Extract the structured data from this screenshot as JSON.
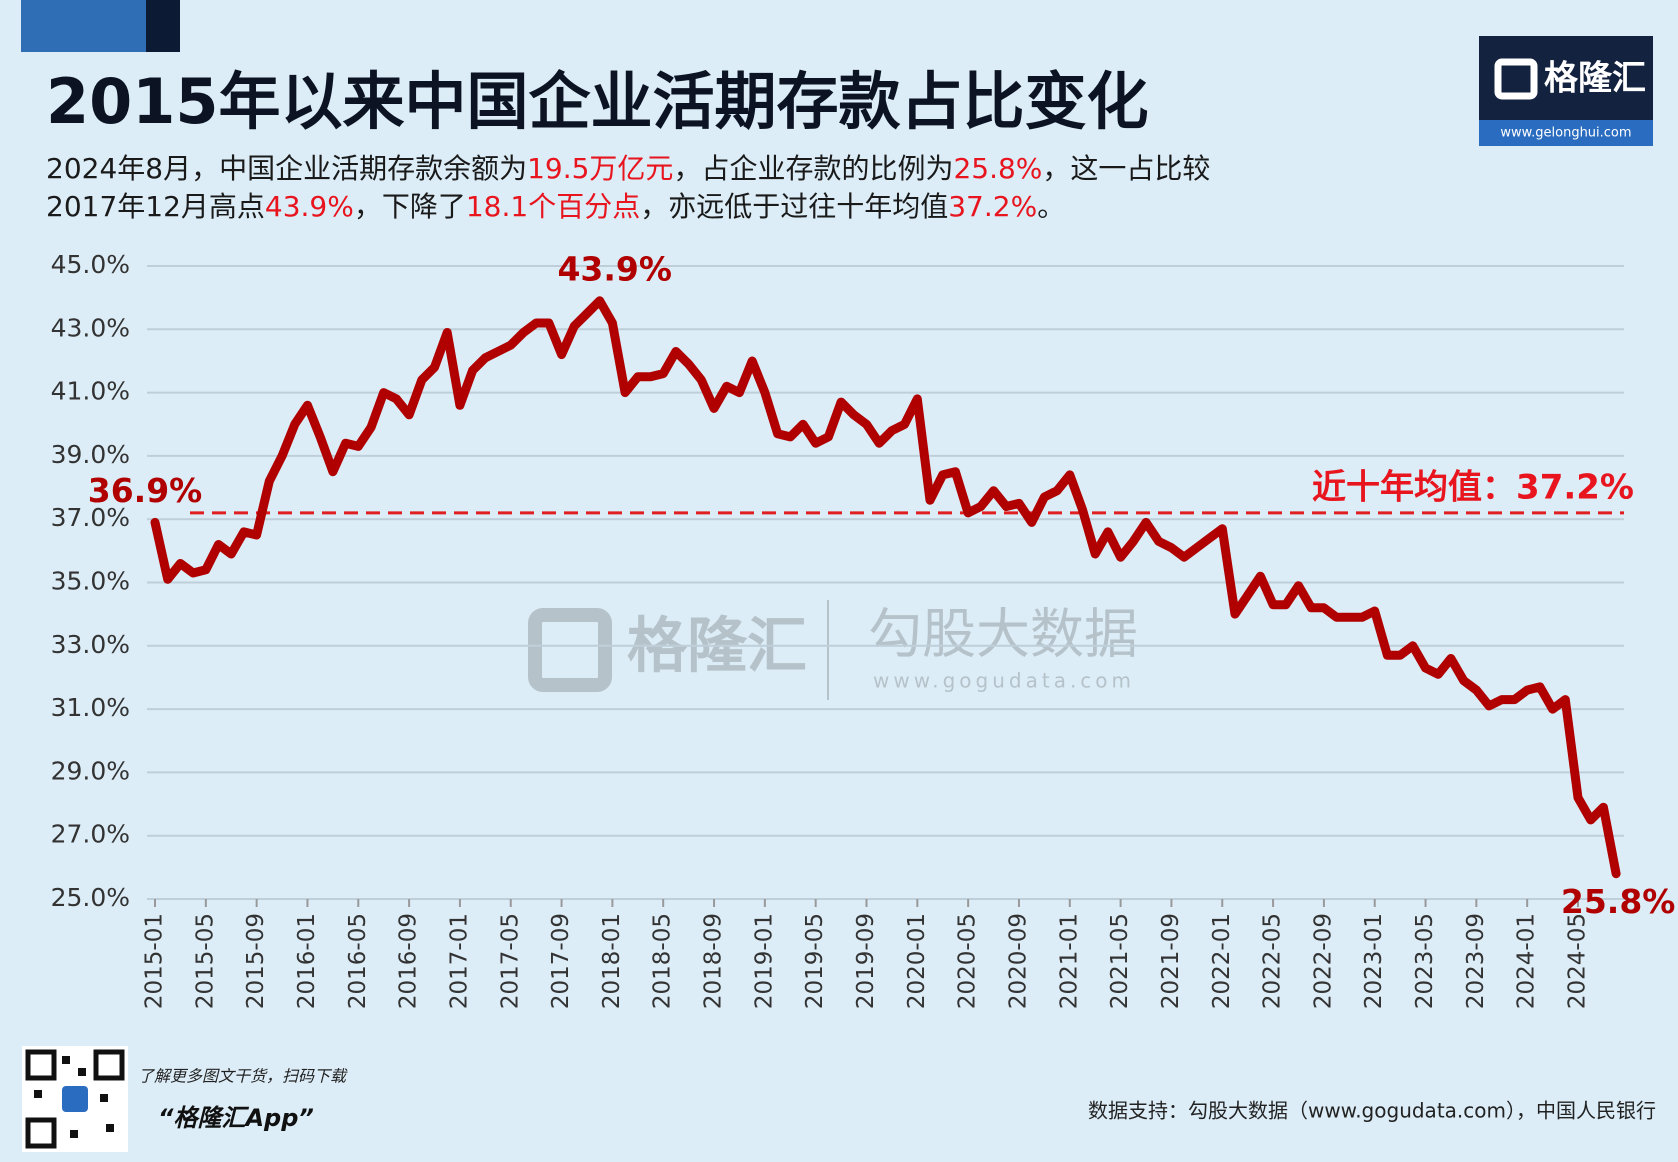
{
  "chart_data": {
    "type": "line",
    "title": "2015年以来中国企业活期存款占比变化",
    "subtitle_lines": [
      [
        {
          "text": "2024年8月，中国企业活期存款余额为"
        },
        {
          "text": "19.5万亿元",
          "highlight": true
        },
        {
          "text": "，占企业存款的比例为"
        },
        {
          "text": "25.8%",
          "highlight": true
        },
        {
          "text": "，这一占比较"
        }
      ],
      [
        {
          "text": "2017年12月高点"
        },
        {
          "text": "43.9%",
          "highlight": true
        },
        {
          "text": "，下降了"
        },
        {
          "text": "18.1个百分点",
          "highlight": true
        },
        {
          "text": "，亦远低于过往十年均值"
        },
        {
          "text": "37.2%",
          "highlight": true
        },
        {
          "text": "。"
        }
      ]
    ],
    "highlight_color": "#e8141e",
    "categories": [
      "2015-01",
      null,
      null,
      null,
      "2015-05",
      null,
      null,
      null,
      "2015-09",
      null,
      null,
      null,
      "2016-01",
      null,
      null,
      null,
      "2016-05",
      null,
      null,
      null,
      "2016-09",
      null,
      null,
      null,
      "2017-01",
      null,
      null,
      null,
      "2017-05",
      null,
      null,
      null,
      "2017-09",
      null,
      null,
      null,
      "2018-01",
      null,
      null,
      null,
      "2018-05",
      null,
      null,
      null,
      "2018-09",
      null,
      null,
      null,
      "2019-01",
      null,
      null,
      null,
      "2019-05",
      null,
      null,
      null,
      "2019-09",
      null,
      null,
      null,
      "2020-01",
      null,
      null,
      null,
      "2020-05",
      null,
      null,
      null,
      "2020-09",
      null,
      null,
      null,
      "2021-01",
      null,
      null,
      null,
      "2021-05",
      null,
      null,
      null,
      "2021-09",
      null,
      null,
      null,
      "2022-01",
      null,
      null,
      null,
      "2022-05",
      null,
      null,
      null,
      "2022-09",
      null,
      null,
      null,
      "2023-01",
      null,
      null,
      null,
      "2023-05",
      null,
      null,
      null,
      "2023-09",
      null,
      null,
      null,
      "2024-01",
      null,
      null,
      null,
      "2024-05",
      null,
      null,
      null
    ],
    "series": [
      {
        "color": "#b00000",
        "values": [
          36.9,
          35.1,
          35.6,
          35.3,
          35.4,
          36.2,
          35.9,
          36.6,
          36.5,
          38.2,
          39.0,
          40.0,
          40.6,
          39.6,
          38.5,
          39.4,
          39.3,
          39.9,
          41.0,
          40.8,
          40.3,
          41.4,
          41.8,
          42.9,
          40.6,
          41.7,
          42.1,
          42.3,
          42.5,
          42.9,
          43.2,
          43.2,
          42.2,
          43.1,
          43.5,
          43.9,
          43.2,
          41.0,
          41.5,
          41.5,
          41.6,
          42.3,
          41.9,
          41.4,
          40.5,
          41.2,
          41.0,
          42.0,
          41.0,
          39.7,
          39.6,
          40.0,
          39.4,
          39.6,
          40.7,
          40.3,
          40.0,
          39.4,
          39.8,
          40.0,
          40.8,
          37.6,
          38.4,
          38.5,
          37.2,
          37.4,
          37.9,
          37.4,
          37.5,
          36.9,
          37.7,
          37.9,
          38.4,
          37.3,
          35.9,
          36.6,
          35.8,
          36.3,
          36.9,
          36.3,
          36.1,
          35.8,
          36.1,
          36.4,
          36.7,
          34.0,
          34.6,
          35.2,
          34.3,
          34.3,
          34.9,
          34.2,
          34.2,
          33.9,
          33.9,
          33.9,
          34.1,
          32.7,
          32.7,
          33.0,
          32.3,
          32.1,
          32.6,
          31.9,
          31.6,
          31.1,
          31.3,
          31.3,
          31.6,
          31.7,
          31.0,
          31.3,
          28.2,
          27.5,
          27.9,
          25.8
        ],
        "value_labels": [
          "36.9%",
          null,
          null,
          null,
          null,
          null,
          null,
          null,
          null,
          null,
          null,
          null,
          null,
          null,
          null,
          null,
          null,
          null,
          null,
          null,
          null,
          null,
          null,
          null,
          null,
          null,
          null,
          null,
          null,
          null,
          null,
          null,
          null,
          null,
          null,
          "43.9%",
          null,
          null,
          null,
          null,
          null,
          null,
          null,
          null,
          null,
          null,
          null,
          null,
          null,
          null,
          null,
          null,
          null,
          null,
          null,
          null,
          null,
          null,
          null,
          null,
          null,
          null,
          null,
          null,
          null,
          null,
          null,
          null,
          null,
          null,
          null,
          null,
          null,
          null,
          null,
          null,
          null,
          null,
          null,
          null,
          null,
          null,
          null,
          null,
          null,
          null,
          null,
          null,
          null,
          null,
          null,
          null,
          null,
          null,
          null,
          null,
          null,
          null,
          null,
          null,
          null,
          null,
          null,
          null,
          null,
          null,
          null,
          null,
          null,
          null,
          null,
          null,
          null,
          null,
          null,
          "25.8%"
        ]
      }
    ],
    "reference_line": {
      "value": 37.2,
      "label": "近十年均值：37.2%",
      "color": "#e02020"
    },
    "ylim": [
      25,
      45
    ],
    "yticks": [
      {
        "value": 25,
        "label": "25.0%"
      },
      {
        "value": 27,
        "label": "27.0%"
      },
      {
        "value": 29,
        "label": "29.0%"
      },
      {
        "value": 31,
        "label": "31.0%"
      },
      {
        "value": 33,
        "label": "33.0%"
      },
      {
        "value": 35,
        "label": "35.0%"
      },
      {
        "value": 37,
        "label": "37.0%"
      },
      {
        "value": 39,
        "label": "39.0%"
      },
      {
        "value": 41,
        "label": "41.0%"
      },
      {
        "value": 43,
        "label": "43.0%"
      },
      {
        "value": 45,
        "label": "45.0%"
      }
    ],
    "grid": true
  },
  "branding": {
    "logo": "格隆汇",
    "logo_url": "www.gelonghui.com",
    "watermark_brand": "格隆汇",
    "watermark_data": "勾股大数据",
    "watermark_url": "www.gogudata.com",
    "qr_caption": "了解更多图文干货，扫码下载",
    "app_name": "“格隆汇App”",
    "source": "数据支持：勾股大数据（www.gogudata.com），中国人民银行"
  }
}
